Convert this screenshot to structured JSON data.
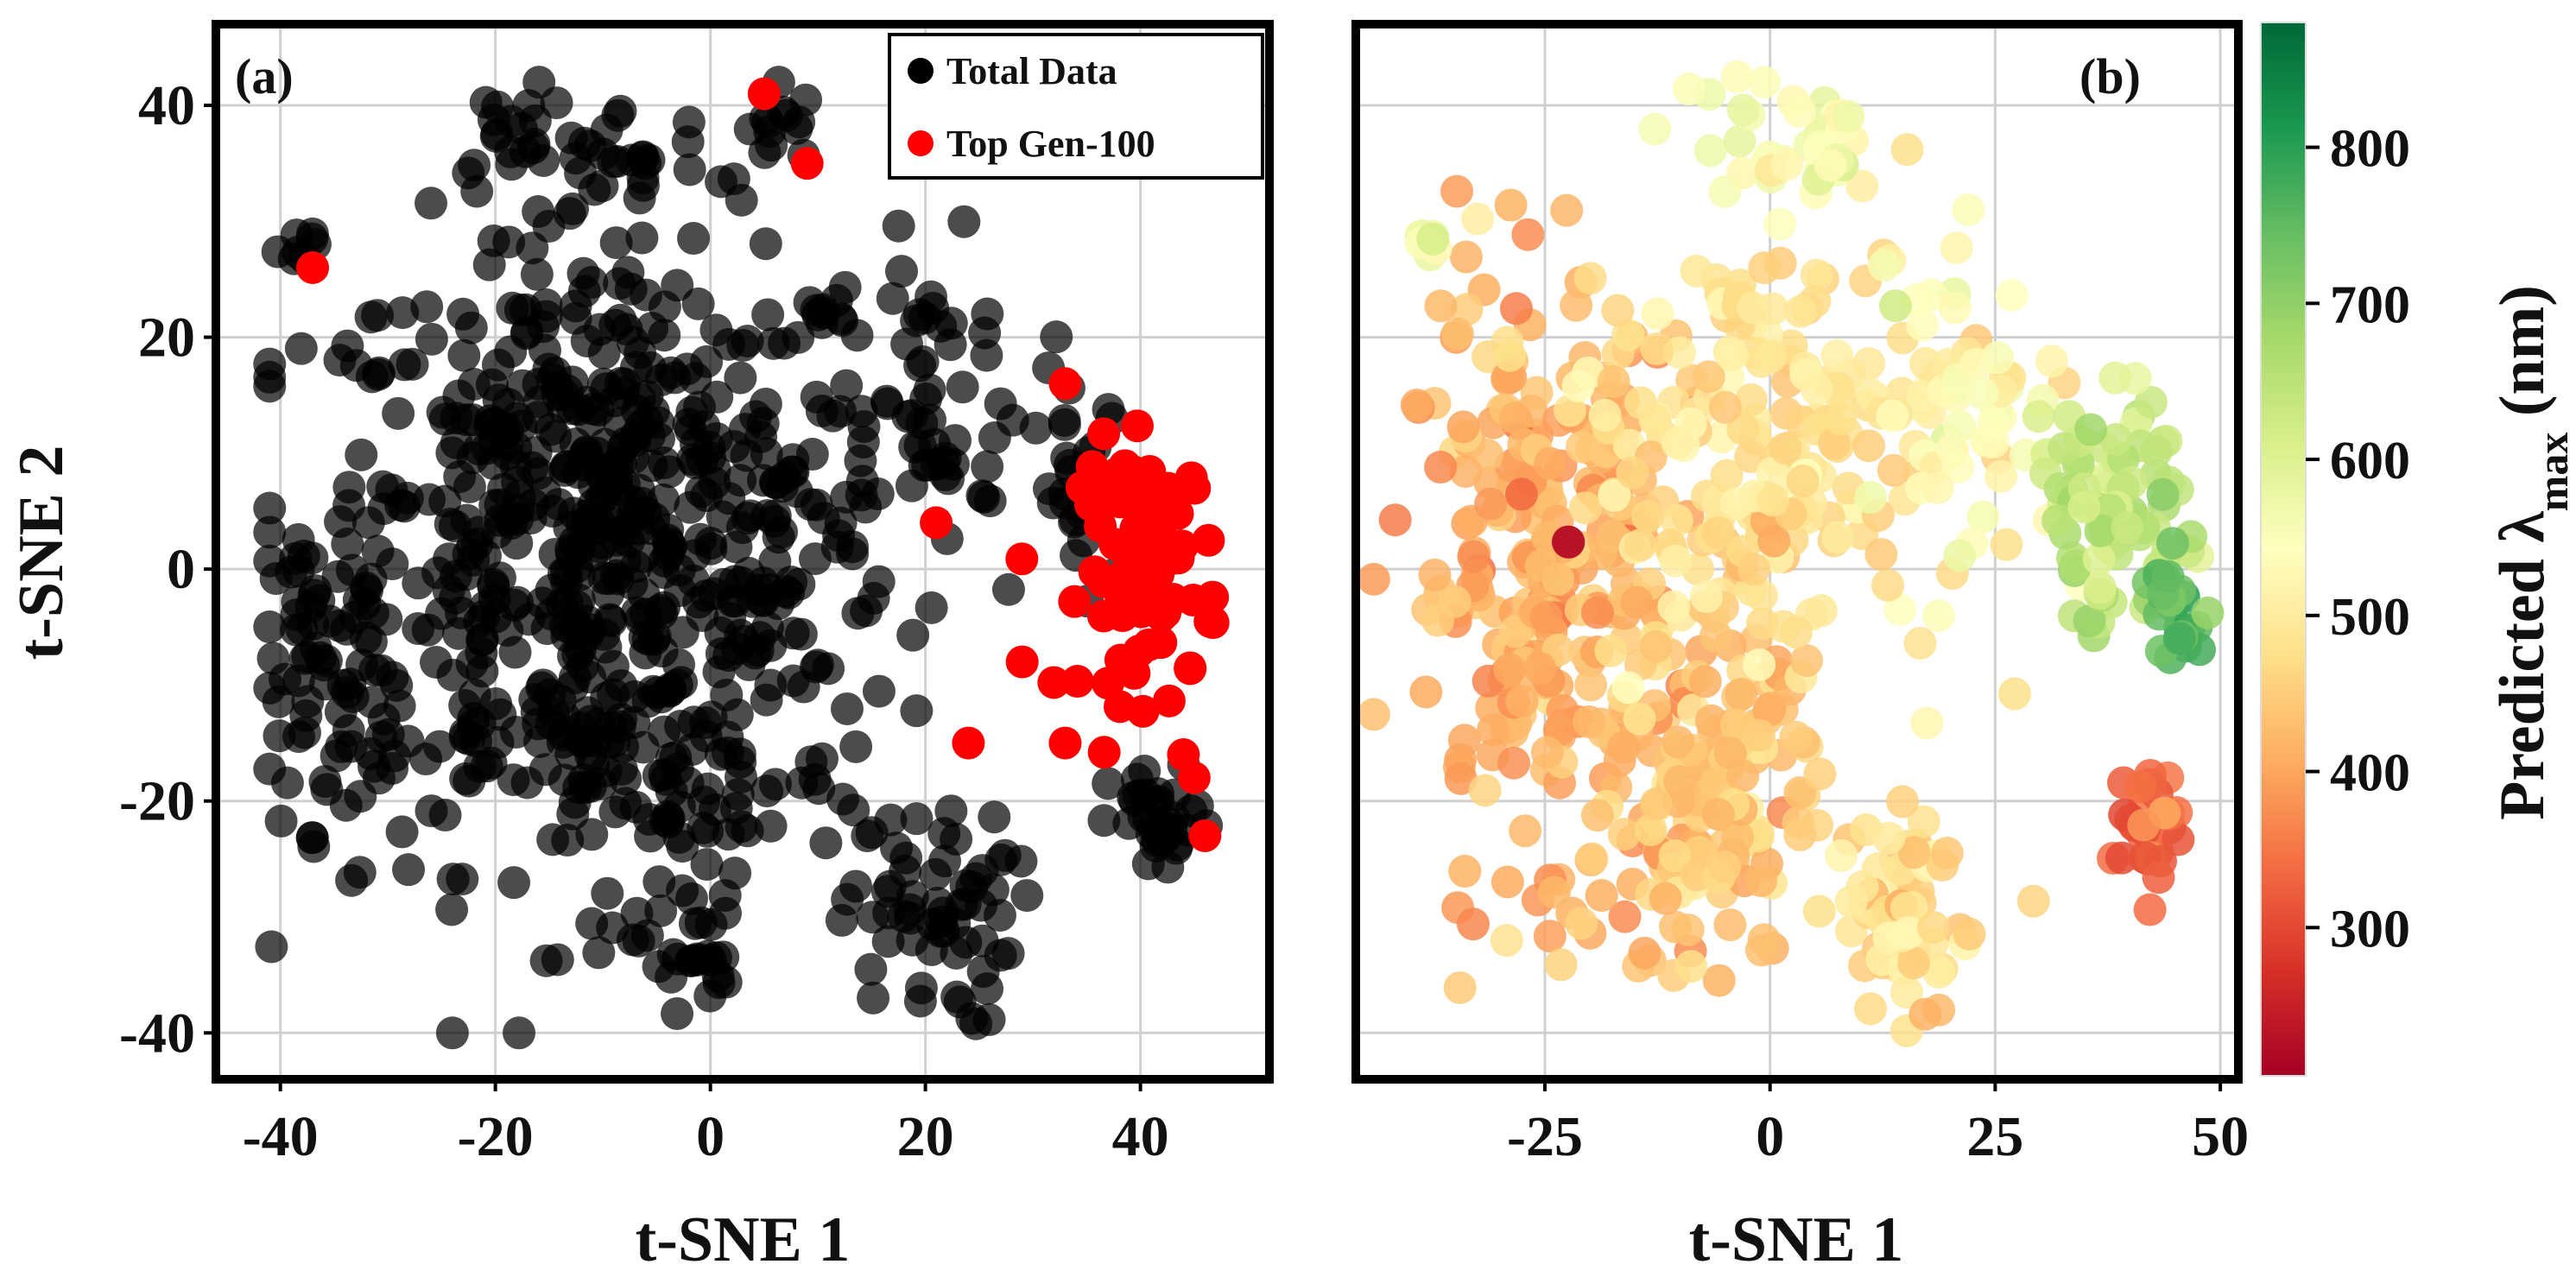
{
  "chart_data": [
    {
      "type": "scatter",
      "panel_label": "(a)",
      "xlabel": "t-SNE 1",
      "ylabel": "t-SNE 2",
      "xlim": [
        -46,
        52
      ],
      "ylim": [
        -44,
        47
      ],
      "xticks": [
        -40,
        -20,
        0,
        20,
        40
      ],
      "yticks": [
        -40,
        -20,
        0,
        20,
        40
      ],
      "xtick_labels": [
        "-40",
        "-20",
        "0",
        "20",
        "40"
      ],
      "ytick_labels": [
        "-40",
        "-20",
        "0",
        "20",
        "40"
      ],
      "grid": true,
      "legend_position": "top-right",
      "series": [
        {
          "name": "Total Data",
          "color": "#000000",
          "opacity": 0.7,
          "approx_point_count": 1000,
          "clusters": [
            {
              "cx": -10,
              "cy": 2,
              "sx": 17,
              "sy": 17,
              "n": 640
            },
            {
              "cx": -18,
              "cy": 38,
              "sx": 4,
              "sy": 3,
              "n": 18
            },
            {
              "cx": -8,
              "cy": 35,
              "sx": 5,
              "sy": 3,
              "n": 20
            },
            {
              "cx": 5,
              "cy": 38,
              "sx": 3,
              "sy": 3,
              "n": 14
            },
            {
              "cx": -38,
              "cy": 28,
              "sx": 1.3,
              "sy": 1.3,
              "n": 8
            },
            {
              "cx": 20,
              "cy": 15,
              "sx": 7,
              "sy": 8,
              "n": 60
            },
            {
              "cx": 20,
              "cy": -30,
              "sx": 5,
              "sy": 6,
              "n": 60
            },
            {
              "cx": -2,
              "cy": -33,
              "sx": 3,
              "sy": 3,
              "n": 26
            },
            {
              "cx": 42,
              "cy": -22,
              "sx": 3,
              "sy": 3,
              "n": 34
            },
            {
              "cx": 35,
              "cy": 5,
              "sx": 3,
              "sy": 6,
              "n": 26
            },
            {
              "cx": -35,
              "cy": -8,
              "sx": 4,
              "sy": 9,
              "n": 60
            },
            {
              "cx": -6,
              "cy": -18,
              "sx": 12,
              "sy": 6,
              "n": 60
            }
          ]
        },
        {
          "name": "Top Gen-100",
          "color": "#ff0000",
          "opacity": 1.0,
          "approx_point_count": 100,
          "clusters": [
            {
              "cx": 41,
              "cy": 0,
              "sx": 4,
              "sy": 7,
              "n": 82
            }
          ],
          "points": [
            [
              -37,
              26
            ],
            [
              5,
              41
            ],
            [
              9,
              35
            ],
            [
              21,
              4
            ],
            [
              24,
              -15
            ],
            [
              33,
              -15
            ],
            [
              33,
              16
            ],
            [
              29,
              -8
            ],
            [
              44,
              -16
            ],
            [
              46,
              -23
            ],
            [
              45,
              -18
            ]
          ]
        }
      ]
    },
    {
      "type": "scatter",
      "panel_label": "(b)",
      "xlabel": "t-SNE 1",
      "ylabel": "",
      "xlim": [
        -46,
        52
      ],
      "ylim": [
        -44,
        47
      ],
      "xticks": [
        -25,
        0,
        25,
        50
      ],
      "yticks": [
        -40,
        -20,
        0,
        20,
        40
      ],
      "xtick_labels": [
        "-25",
        "0",
        "25",
        "50"
      ],
      "ytick_labels": [],
      "grid": true,
      "colorbar": {
        "label": "Predicted λmax (nm)",
        "label_main": "Predicted λ",
        "label_sub": "max",
        "label_unit": " (nm)",
        "range": [
          205,
          880
        ],
        "ticks": [
          300,
          400,
          500,
          600,
          700,
          800
        ],
        "tick_labels": [
          "300",
          "400",
          "500",
          "600",
          "700",
          "800"
        ],
        "colormap": "RdYlGn"
      },
      "color_regions": [
        {
          "cx": -25,
          "cy": 0,
          "sx": 10,
          "sy": 15,
          "n": 260,
          "value": 410
        },
        {
          "cx": -8,
          "cy": -20,
          "sx": 8,
          "sy": 10,
          "n": 150,
          "value": 440
        },
        {
          "cx": 0,
          "cy": 10,
          "sx": 12,
          "sy": 12,
          "n": 200,
          "value": 480
        },
        {
          "cx": 15,
          "cy": -30,
          "sx": 5,
          "sy": 5,
          "n": 60,
          "value": 470
        },
        {
          "cx": 20,
          "cy": 15,
          "sx": 8,
          "sy": 8,
          "n": 60,
          "value": 530
        },
        {
          "cx": 2,
          "cy": 37,
          "sx": 8,
          "sy": 4,
          "n": 40,
          "value": 550
        },
        {
          "cx": -38,
          "cy": 28,
          "sx": 1.3,
          "sy": 1.3,
          "n": 8,
          "value": 560
        },
        {
          "cx": 38,
          "cy": 5,
          "sx": 5,
          "sy": 6,
          "n": 80,
          "value": 640
        },
        {
          "cx": 45,
          "cy": -3,
          "sx": 2,
          "sy": 3,
          "n": 24,
          "value": 750
        },
        {
          "cx": 42,
          "cy": -22,
          "sx": 2.5,
          "sy": 3,
          "n": 30,
          "value": 330
        },
        {
          "cx": -22,
          "cy": 3,
          "sx": 0.6,
          "sy": 0.6,
          "n": 2,
          "value": 240
        }
      ]
    }
  ],
  "colors": {
    "black_points": "#000000",
    "red_points": "#ff0000",
    "grid": "#d0d0d0",
    "frame": "#000000"
  }
}
